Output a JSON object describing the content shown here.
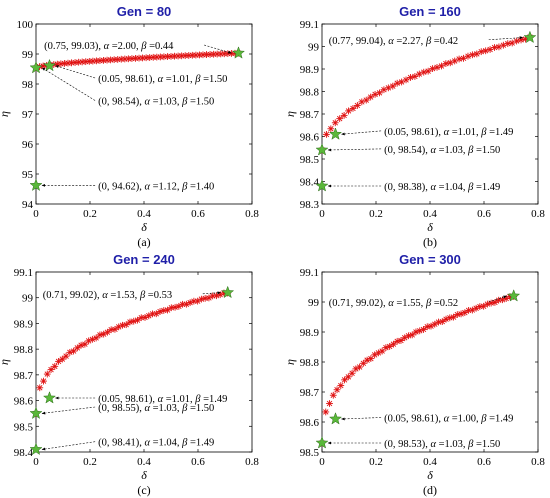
{
  "colors": {
    "title": "#1f1fa8",
    "star": "#e01010",
    "best": "#5ab83a",
    "axis": "#000000"
  },
  "panels": [
    {
      "title": "Gen = 80",
      "caption": "(a)",
      "xlabel": "δ",
      "ylabel": "η",
      "xlim": [
        0,
        0.8
      ],
      "ylim": [
        94,
        100
      ],
      "xticks": [
        "0",
        "0.2",
        "0.4",
        "0.6",
        "0.8"
      ],
      "yticks": [
        "94",
        "95",
        "96",
        "97",
        "98",
        "99",
        "100"
      ],
      "front": {
        "x_start": 0.0,
        "x_end": 0.75,
        "y_start": 98.54,
        "y_end": 99.03,
        "count": 58
      },
      "points": [
        {
          "x": 0.75,
          "y": 99.03,
          "label_prefix": "(0.75, 99.03), ",
          "alpha": "2.00",
          "beta": "0.44",
          "label_x": 0.03,
          "label_y": 99.3
        },
        {
          "x": 0.05,
          "y": 98.61,
          "label_prefix": "(0.05, 98.61), ",
          "alpha": "1.01",
          "beta": "1.50",
          "label_x": 0.23,
          "label_y": 98.2
        },
        {
          "x": 0.0,
          "y": 98.54,
          "label_prefix": "(0, 98.54), ",
          "alpha": "1.03",
          "beta": "1.50",
          "label_x": 0.23,
          "label_y": 97.45
        },
        {
          "x": 0.0,
          "y": 94.62,
          "label_prefix": "(0, 94.62), ",
          "alpha": "1.12",
          "beta": "1.40",
          "label_x": 0.23,
          "label_y": 94.62
        }
      ]
    },
    {
      "title": "Gen = 160",
      "caption": "(b)",
      "xlabel": "δ",
      "ylabel": "η",
      "xlim": [
        0,
        0.8
      ],
      "ylim": [
        98.3,
        99.1
      ],
      "xticks": [
        "0",
        "0.2",
        "0.4",
        "0.6",
        "0.8"
      ],
      "yticks": [
        "98.3",
        "98.4",
        "98.5",
        "98.6",
        "98.7",
        "98.8",
        "98.9",
        "99",
        "99.1"
      ],
      "front": {
        "x_start": 0.0,
        "x_end": 0.77,
        "y_start": 98.54,
        "y_end": 99.04,
        "count": 48
      },
      "points": [
        {
          "x": 0.77,
          "y": 99.04,
          "label_prefix": "(0.77, 99.04), ",
          "alpha": "2.27",
          "beta": "0.42",
          "label_x": 0.025,
          "label_y": 99.03
        },
        {
          "x": 0.05,
          "y": 98.61,
          "label_prefix": "(0.05, 98.61), ",
          "alpha": "1.01",
          "beta": "1.49",
          "label_x": 0.23,
          "label_y": 98.625
        },
        {
          "x": 0.0,
          "y": 98.54,
          "label_prefix": "(0, 98.54), ",
          "alpha": "1.03",
          "beta": "1.50",
          "label_x": 0.23,
          "label_y": 98.545
        },
        {
          "x": 0.0,
          "y": 98.38,
          "label_prefix": "(0, 98.38), ",
          "alpha": "1.04",
          "beta": "1.49",
          "label_x": 0.23,
          "label_y": 98.38
        }
      ]
    },
    {
      "title": "Gen = 240",
      "caption": "(c)",
      "xlabel": "δ",
      "ylabel": "η",
      "xlim": [
        0,
        0.8
      ],
      "ylim": [
        98.4,
        99.1
      ],
      "xticks": [
        "0",
        "0.2",
        "0.4",
        "0.6",
        "0.8"
      ],
      "yticks": [
        "98.4",
        "98.5",
        "98.6",
        "98.7",
        "98.8",
        "98.9",
        "99",
        "99.1"
      ],
      "front": {
        "x_start": 0.0,
        "x_end": 0.71,
        "y_start": 98.55,
        "y_end": 99.02,
        "count": 52
      },
      "points": [
        {
          "x": 0.71,
          "y": 99.02,
          "label_prefix": "(0.71, 99.02), ",
          "alpha": "1.53",
          "beta": "0.53",
          "label_x": 0.025,
          "label_y": 99.015
        },
        {
          "x": 0.05,
          "y": 98.61,
          "label_prefix": "(0.05, 98.61), ",
          "alpha": "1.01",
          "beta": "1.49",
          "label_x": 0.23,
          "label_y": 98.61
        },
        {
          "x": 0.0,
          "y": 98.55,
          "label_prefix": "(0, 98.55), ",
          "alpha": "1.03",
          "beta": "1.50",
          "label_x": 0.23,
          "label_y": 98.575
        },
        {
          "x": 0.0,
          "y": 98.41,
          "label_prefix": "(0, 98.41), ",
          "alpha": "1.04",
          "beta": "1.49",
          "label_x": 0.23,
          "label_y": 98.44
        }
      ]
    },
    {
      "title": "Gen = 300",
      "caption": "(d)",
      "xlabel": "δ",
      "ylabel": "η",
      "xlim": [
        0,
        0.8
      ],
      "ylim": [
        98.5,
        99.1
      ],
      "xticks": [
        "0",
        "0.2",
        "0.4",
        "0.6",
        "0.8"
      ],
      "yticks": [
        "98.5",
        "98.6",
        "98.7",
        "98.8",
        "98.9",
        "99",
        "99.1"
      ],
      "front": {
        "x_start": 0.0,
        "x_end": 0.71,
        "y_start": 98.53,
        "y_end": 99.02,
        "count": 52
      },
      "points": [
        {
          "x": 0.71,
          "y": 99.02,
          "label_prefix": "(0.71, 99.02), ",
          "alpha": "1.55",
          "beta": "0.52",
          "label_x": 0.025,
          "label_y": 99.0
        },
        {
          "x": 0.05,
          "y": 98.61,
          "label_prefix": "(0.05, 98.61), ",
          "alpha": "1.00",
          "beta": "1.49",
          "label_x": 0.23,
          "label_y": 98.615
        },
        {
          "x": 0.0,
          "y": 98.53,
          "label_prefix": "(0, 98.53), ",
          "alpha": "1.03",
          "beta": "1.50",
          "label_x": 0.23,
          "label_y": 98.53
        }
      ]
    }
  ],
  "chart_data": [
    {
      "type": "scatter",
      "title": "Gen = 80",
      "xlabel": "δ",
      "ylabel": "η",
      "xlim": [
        0,
        0.8
      ],
      "ylim": [
        94,
        100
      ],
      "grid": false,
      "annotated": [
        [
          0.75,
          99.03
        ],
        [
          0.05,
          98.61
        ],
        [
          0,
          98.54
        ],
        [
          0,
          94.62
        ]
      ]
    },
    {
      "type": "scatter",
      "title": "Gen = 160",
      "xlabel": "δ",
      "ylabel": "η",
      "xlim": [
        0,
        0.8
      ],
      "ylim": [
        98.3,
        99.1
      ],
      "grid": false,
      "annotated": [
        [
          0.77,
          99.04
        ],
        [
          0.05,
          98.61
        ],
        [
          0,
          98.54
        ],
        [
          0,
          98.38
        ]
      ]
    },
    {
      "type": "scatter",
      "title": "Gen = 240",
      "xlabel": "δ",
      "ylabel": "η",
      "xlim": [
        0,
        0.8
      ],
      "ylim": [
        98.4,
        99.1
      ],
      "grid": false,
      "annotated": [
        [
          0.71,
          99.02
        ],
        [
          0.05,
          98.61
        ],
        [
          0,
          98.55
        ],
        [
          0,
          98.41
        ]
      ]
    },
    {
      "type": "scatter",
      "title": "Gen = 300",
      "xlabel": "δ",
      "ylabel": "η",
      "xlim": [
        0,
        0.8
      ],
      "ylim": [
        98.5,
        99.1
      ],
      "grid": false,
      "annotated": [
        [
          0.71,
          99.02
        ],
        [
          0.05,
          98.61
        ],
        [
          0,
          98.53
        ]
      ]
    }
  ]
}
